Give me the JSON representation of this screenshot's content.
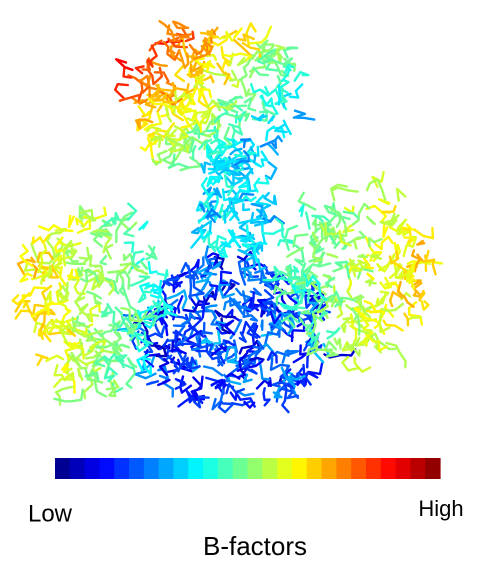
{
  "colorbar": {
    "low_label": "Low",
    "high_label": "High",
    "title": "B-factors"
  }
}
